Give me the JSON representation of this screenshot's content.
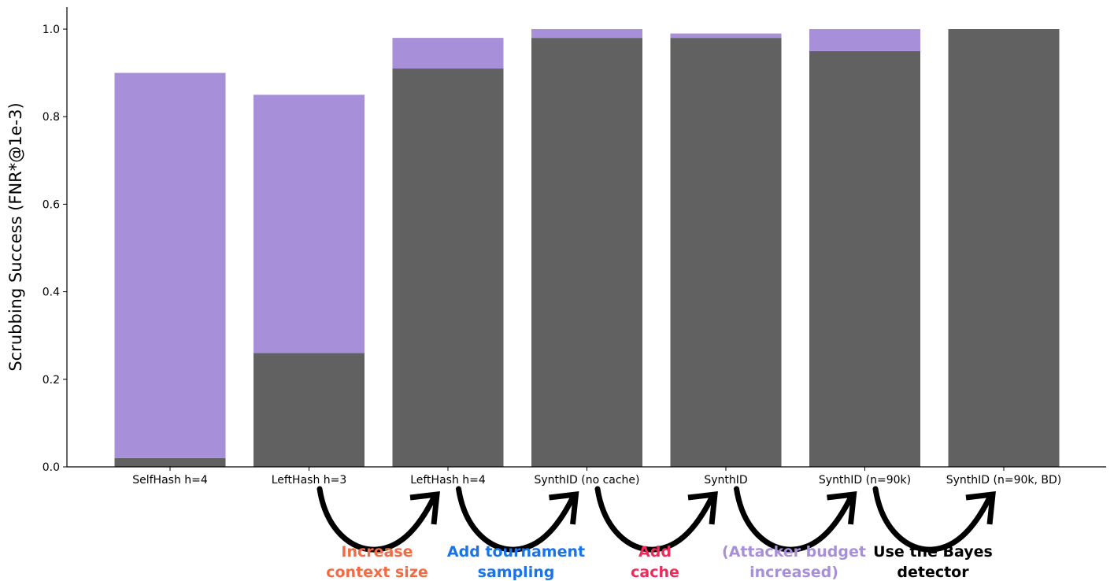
{
  "chart_data": {
    "type": "bar",
    "stacked": true,
    "categories": [
      "SelfHash h=4",
      "LeftHash h=3",
      "LeftHash h=4",
      "SynthID (no cache)",
      "SynthID",
      "SynthID (n=90k)",
      "SynthID (n=90k, BD)"
    ],
    "series": [
      {
        "color": "#616161",
        "values": [
          0.02,
          0.26,
          0.91,
          0.98,
          0.98,
          0.95,
          1.0
        ]
      },
      {
        "color": "#a78fd9",
        "values": [
          0.88,
          0.59,
          0.07,
          0.02,
          0.01,
          0.05,
          0.0
        ]
      }
    ],
    "ylabel": "Scrubbing Success (FNR*@1e-3)",
    "xlabel": "",
    "ylim": [
      0,
      1.05
    ],
    "yticks": [
      "0.0",
      "0.2",
      "0.4",
      "0.6",
      "0.8",
      "1.0"
    ],
    "grid": false,
    "legend": "none"
  },
  "annotations": [
    {
      "lines": [
        "Increase",
        "context size"
      ],
      "color": "#f26b45"
    },
    {
      "lines": [
        "Add tournament",
        "sampling"
      ],
      "color": "#1a73e8"
    },
    {
      "lines": [
        "Add",
        "cache"
      ],
      "color": "#ee2a5a"
    },
    {
      "lines": [
        "(Attacker budget",
        "increased)"
      ],
      "color": "#a78fd9"
    },
    {
      "lines": [
        "Use the Bayes",
        "detector"
      ],
      "color": "#000000"
    }
  ]
}
